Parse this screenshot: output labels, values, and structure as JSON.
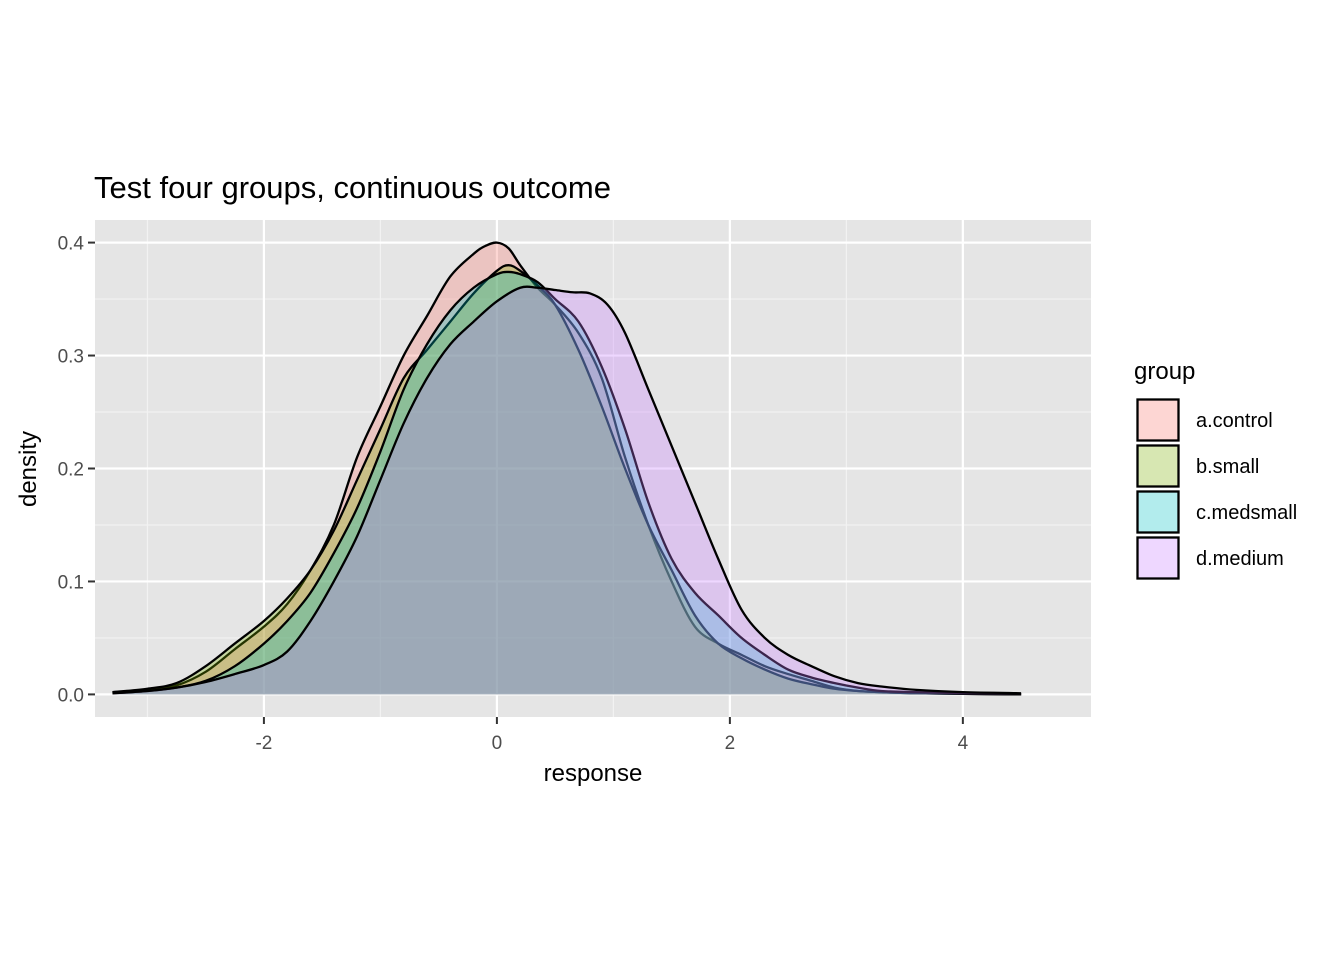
{
  "chart_data": {
    "type": "area",
    "subtype": "density",
    "title": "Test four groups, continuous outcome",
    "xlabel": "response",
    "ylabel": "density",
    "xlim": [
      -3.45,
      5.1
    ],
    "ylim": [
      -0.02,
      0.42
    ],
    "x_ticks": [
      -2,
      0,
      2,
      4
    ],
    "x_tick_labels": [
      "-2",
      "0",
      "2",
      "4"
    ],
    "y_ticks": [
      0.0,
      0.1,
      0.2,
      0.3,
      0.4
    ],
    "y_tick_labels": [
      "0.0",
      "0.1",
      "0.2",
      "0.3",
      "0.4"
    ],
    "grid": true,
    "panel_background": "#e5e5e5",
    "fill_opacity": 0.3,
    "legend": {
      "title": "group",
      "position": "right"
    },
    "series": [
      {
        "name": "a.control",
        "color": "#f8766d",
        "x": [
          -3.3,
          -3.0,
          -2.75,
          -2.5,
          -2.25,
          -2.0,
          -1.8,
          -1.6,
          -1.4,
          -1.2,
          -1.0,
          -0.8,
          -0.6,
          -0.4,
          -0.2,
          -0.1,
          0.0,
          0.1,
          0.2,
          0.35,
          0.5,
          0.7,
          0.9,
          1.1,
          1.3,
          1.5,
          1.7,
          1.9,
          2.1,
          2.3,
          2.5,
          2.7,
          2.9,
          3.1,
          3.3,
          3.6,
          4.0,
          4.5
        ],
        "values": [
          0.002,
          0.004,
          0.008,
          0.02,
          0.04,
          0.06,
          0.08,
          0.11,
          0.15,
          0.21,
          0.255,
          0.3,
          0.335,
          0.37,
          0.39,
          0.397,
          0.4,
          0.395,
          0.38,
          0.36,
          0.345,
          0.32,
          0.28,
          0.21,
          0.15,
          0.1,
          0.06,
          0.045,
          0.035,
          0.025,
          0.018,
          0.012,
          0.006,
          0.003,
          0.002,
          0.001,
          0.0005,
          0.0
        ]
      },
      {
        "name": "b.small",
        "color": "#7cae00",
        "x": [
          -3.3,
          -3.0,
          -2.75,
          -2.5,
          -2.25,
          -2.0,
          -1.8,
          -1.6,
          -1.4,
          -1.2,
          -1.0,
          -0.8,
          -0.6,
          -0.4,
          -0.2,
          0.0,
          0.1,
          0.2,
          0.35,
          0.5,
          0.7,
          0.9,
          1.1,
          1.3,
          1.5,
          1.7,
          1.9,
          2.1,
          2.3,
          2.5,
          2.7,
          2.9,
          3.1,
          3.3,
          3.6,
          4.0,
          4.5
        ],
        "values": [
          0.002,
          0.005,
          0.01,
          0.025,
          0.045,
          0.065,
          0.085,
          0.11,
          0.145,
          0.19,
          0.235,
          0.28,
          0.305,
          0.33,
          0.355,
          0.375,
          0.38,
          0.375,
          0.362,
          0.345,
          0.305,
          0.255,
          0.2,
          0.15,
          0.11,
          0.07,
          0.045,
          0.032,
          0.022,
          0.014,
          0.009,
          0.005,
          0.003,
          0.002,
          0.001,
          0.0005,
          0.0
        ]
      },
      {
        "name": "c.medsmall",
        "color": "#00bfc4",
        "x": [
          -3.3,
          -3.0,
          -2.75,
          -2.5,
          -2.25,
          -2.0,
          -1.8,
          -1.6,
          -1.4,
          -1.2,
          -1.0,
          -0.8,
          -0.6,
          -0.4,
          -0.2,
          0.0,
          0.1,
          0.2,
          0.35,
          0.5,
          0.7,
          0.9,
          1.1,
          1.3,
          1.5,
          1.7,
          1.9,
          2.1,
          2.3,
          2.5,
          2.7,
          2.9,
          3.1,
          3.3,
          3.6,
          4.0,
          4.5
        ],
        "values": [
          0.001,
          0.003,
          0.006,
          0.012,
          0.025,
          0.045,
          0.065,
          0.09,
          0.125,
          0.165,
          0.215,
          0.27,
          0.31,
          0.34,
          0.36,
          0.372,
          0.374,
          0.372,
          0.365,
          0.35,
          0.33,
          0.29,
          0.235,
          0.17,
          0.12,
          0.09,
          0.07,
          0.05,
          0.035,
          0.022,
          0.015,
          0.01,
          0.006,
          0.003,
          0.002,
          0.001,
          0.0
        ]
      },
      {
        "name": "d.medium",
        "color": "#c77cff",
        "x": [
          -3.3,
          -3.0,
          -2.75,
          -2.5,
          -2.25,
          -2.0,
          -1.8,
          -1.6,
          -1.4,
          -1.2,
          -1.0,
          -0.8,
          -0.6,
          -0.4,
          -0.2,
          0.0,
          0.2,
          0.35,
          0.5,
          0.65,
          0.8,
          0.95,
          1.1,
          1.3,
          1.5,
          1.7,
          1.9,
          2.1,
          2.3,
          2.5,
          2.7,
          2.9,
          3.1,
          3.3,
          3.6,
          4.0,
          4.5
        ],
        "values": [
          0.001,
          0.003,
          0.006,
          0.011,
          0.018,
          0.026,
          0.038,
          0.065,
          0.1,
          0.14,
          0.19,
          0.24,
          0.28,
          0.31,
          0.33,
          0.348,
          0.36,
          0.36,
          0.358,
          0.356,
          0.355,
          0.345,
          0.32,
          0.27,
          0.22,
          0.17,
          0.12,
          0.075,
          0.05,
          0.035,
          0.025,
          0.016,
          0.01,
          0.007,
          0.004,
          0.002,
          0.001
        ]
      }
    ]
  }
}
